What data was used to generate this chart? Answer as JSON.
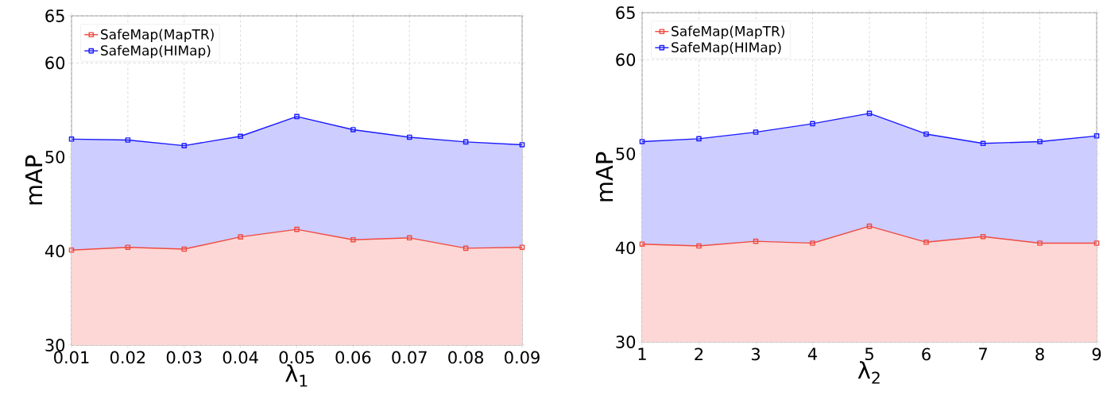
{
  "chart_data": [
    {
      "type": "area",
      "x": [
        0.01,
        0.02,
        0.03,
        0.04,
        0.05,
        0.06,
        0.07,
        0.08,
        0.09
      ],
      "xlim": [
        0.01,
        0.09
      ],
      "xticks": [
        0.01,
        0.02,
        0.03,
        0.04,
        0.05,
        0.06,
        0.07,
        0.08,
        0.09
      ],
      "ylim": [
        30,
        65
      ],
      "yticks": [
        30,
        40,
        50,
        60,
        65
      ],
      "xlabel": "λ$_{1}$",
      "ylabel": "mAP",
      "legend": "top left",
      "grid": true,
      "marker": "square",
      "series": [
        {
          "name": "SafeMap(MapTR)",
          "color": "#f04a40",
          "values": [
            40.1,
            40.4,
            40.2,
            41.5,
            42.3,
            41.2,
            41.4,
            40.3,
            40.4
          ]
        },
        {
          "name": "SafeMap(HIMap)",
          "color": "#1a1aff",
          "values": [
            51.9,
            51.8,
            51.2,
            52.2,
            54.3,
            52.9,
            52.1,
            51.6,
            51.3
          ]
        }
      ]
    },
    {
      "type": "area",
      "x": [
        1,
        2,
        3,
        4,
        5,
        6,
        7,
        8,
        9
      ],
      "xlim": [
        1,
        9
      ],
      "xticks": [
        1,
        2,
        3,
        4,
        5,
        6,
        7,
        8,
        9
      ],
      "ylim": [
        30,
        65
      ],
      "yticks": [
        30,
        40,
        50,
        60,
        65
      ],
      "xlabel": "λ$_{2}$",
      "ylabel": "mAP",
      "legend": "top left",
      "grid": true,
      "marker": "square",
      "series": [
        {
          "name": "SafeMap(MapTR)",
          "color": "#f04a40",
          "values": [
            40.4,
            40.2,
            40.7,
            40.5,
            42.3,
            40.6,
            41.2,
            40.5,
            40.5
          ]
        },
        {
          "name": "SafeMap(HIMap)",
          "color": "#1a1aff",
          "values": [
            51.3,
            51.6,
            52.3,
            53.2,
            54.3,
            52.1,
            51.1,
            51.3,
            51.9
          ]
        }
      ]
    }
  ]
}
